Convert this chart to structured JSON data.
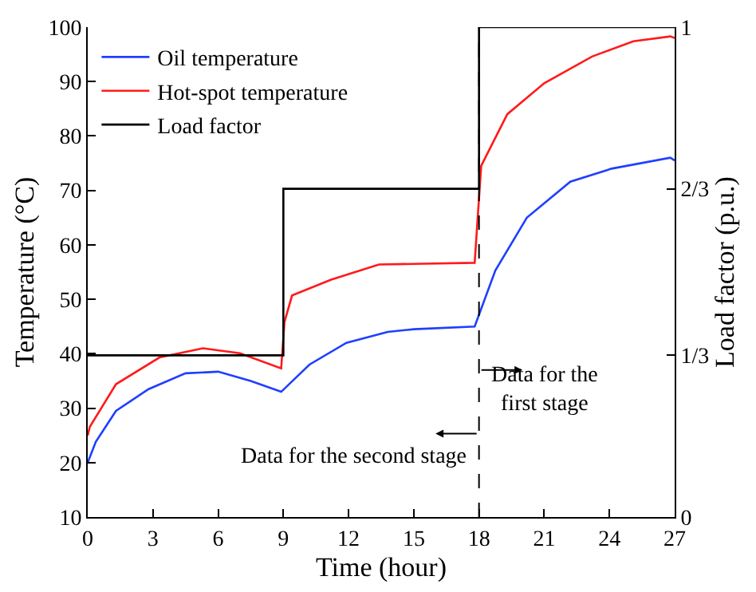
{
  "chart_data": {
    "type": "line",
    "xlabel": "Time (hour)",
    "ylabel": "Temperature (°C)",
    "y2label": "Load factor (p.u.)",
    "xlim": [
      0,
      27
    ],
    "xticks": [
      0,
      3,
      6,
      9,
      12,
      15,
      18,
      21,
      24,
      27
    ],
    "ylim": [
      10,
      100
    ],
    "yticks": [
      10,
      20,
      30,
      40,
      50,
      60,
      70,
      80,
      90,
      100
    ],
    "y2lim": [
      0,
      1
    ],
    "y2ticks": [
      0,
      {
        "value": 0.33,
        "label": "1/3"
      },
      {
        "value": 0.67,
        "label": "2/3"
      },
      1
    ],
    "legend": "top left",
    "marker": "none",
    "line_style": "solid",
    "series": [
      {
        "name": "Oil temperature",
        "color": "#1f3fff",
        "x": [
          0,
          0.37,
          1.3,
          2.8,
          4.5,
          6,
          7.5,
          8.9,
          10.2,
          11.9,
          13.8,
          15,
          17.8,
          18.75,
          20.2,
          22.2,
          24.1,
          26.8,
          27
        ],
        "values": [
          20,
          23.8,
          29.5,
          33.5,
          36.4,
          36.7,
          35,
          33,
          38,
          42,
          44,
          44.5,
          45,
          55.3,
          65,
          71.6,
          74,
          76,
          75.5
        ]
      },
      {
        "name": "Hot-spot temperature",
        "color": "#ff1a1a",
        "x": [
          0,
          0.1,
          1.3,
          3.3,
          5.3,
          7,
          8.9,
          9.05,
          9.4,
          11.2,
          13.4,
          15,
          17.8,
          18.1,
          19.3,
          21,
          23.2,
          25.1,
          26.8,
          27
        ],
        "values": [
          25,
          26.6,
          34.4,
          39.3,
          41,
          40.1,
          37.3,
          45.8,
          50.7,
          53.6,
          56.4,
          56.5,
          56.7,
          74.5,
          84,
          89.7,
          94.6,
          97.4,
          98.3,
          98
        ]
      },
      {
        "name": "Load factor",
        "color": "#000000",
        "type": "step",
        "axis": "y2",
        "x": [
          0,
          9,
          18,
          27
        ],
        "values": [
          0.33,
          0.67,
          1,
          1
        ]
      }
    ],
    "ref_lines": [
      {
        "axis": "x",
        "value": 18,
        "color": "#000000",
        "line_style": "dashed"
      }
    ],
    "annotations": [
      "Data for the\nfirst stage",
      "Data for the second stage"
    ]
  }
}
